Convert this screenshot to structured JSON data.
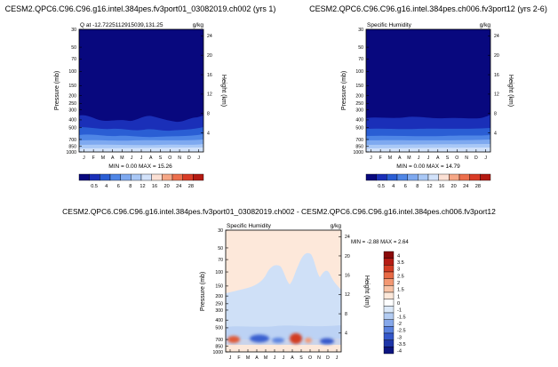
{
  "chart_data": [
    {
      "type": "heatmap",
      "title": "CESM2.QPC6.C96.C96.g16.intel.384pes.fv3port01_03082019.ch002 (yrs 1)",
      "subtitle_left": "Q at -12.7225112915039,131.25",
      "units": "g/kg",
      "ylabel": "Pressure (mb)",
      "ylabel_right": "Height (km)",
      "pressure_ticks": [
        "30",
        "50",
        "70",
        "100",
        "150",
        "200",
        "250",
        "300",
        "400",
        "500",
        "700",
        "850",
        "1000"
      ],
      "height_ticks": [
        "24",
        "20",
        "16",
        "12",
        "8",
        "4"
      ],
      "months": [
        "J",
        "F",
        "M",
        "A",
        "M",
        "J",
        "J",
        "A",
        "S",
        "O",
        "N",
        "D",
        "J"
      ],
      "stats": "MIN =  0.00 MAX =  15.26",
      "colorbar_labels": [
        "0.5",
        "4",
        "6",
        "8",
        "12",
        "16",
        "20",
        "24",
        "28"
      ]
    },
    {
      "type": "heatmap",
      "title": "CESM2.QPC6.C96.C96.g16.intel.384pes.ch006.fv3port12 (yrs 2-6)",
      "subtitle_left": "Specific Humidity",
      "units": "g/kg",
      "ylabel": "Pressure (mb)",
      "ylabel_right": "Height (km)",
      "pressure_ticks": [
        "30",
        "50",
        "70",
        "100",
        "150",
        "200",
        "250",
        "300",
        "400",
        "500",
        "700",
        "850",
        "1000"
      ],
      "height_ticks": [
        "24",
        "20",
        "16",
        "12",
        "8",
        "4"
      ],
      "months": [
        "J",
        "F",
        "M",
        "A",
        "M",
        "J",
        "J",
        "A",
        "S",
        "O",
        "N",
        "D",
        "J"
      ],
      "stats": "MIN =  0.00 MAX =  14.79",
      "colorbar_labels": [
        "0.5",
        "4",
        "6",
        "8",
        "12",
        "16",
        "20",
        "24",
        "28"
      ]
    },
    {
      "type": "heatmap",
      "title": "CESM2.QPC6.C96.C96.g16.intel.384pes.fv3port01_03082019.ch002 - CESM2.QPC6.C96.C96.g16.intel.384pes.ch006.fv3port12",
      "subtitle_left": "Specific Humidity",
      "units": "g/kg",
      "ylabel": "Pressure (mb)",
      "ylabel_right": "Height (km)",
      "pressure_ticks": [
        "30",
        "50",
        "70",
        "100",
        "150",
        "200",
        "250",
        "300",
        "400",
        "500",
        "700",
        "850",
        "1000"
      ],
      "height_ticks": [
        "24",
        "20",
        "16",
        "12",
        "8",
        "4"
      ],
      "months": [
        "J",
        "F",
        "M",
        "A",
        "M",
        "J",
        "J",
        "A",
        "S",
        "O",
        "N",
        "D",
        "J"
      ],
      "stats": "MIN = -2.88 MAX =  2.64",
      "colorbar_labels": [
        "4",
        "3.5",
        "3",
        "2.5",
        "2",
        "1.5",
        "1",
        "0",
        "-1",
        "-1.5",
        "-2",
        "-2.5",
        "-3",
        "-3.5",
        "-4"
      ]
    }
  ],
  "colors": {
    "seq_colorbar": [
      "#08087e",
      "#1a2fb8",
      "#2a5ed4",
      "#4f86e6",
      "#7ea9f0",
      "#a9c8f6",
      "#d2e2fa",
      "#fbe0d4",
      "#f6a786",
      "#ed6f4c",
      "#d93b26",
      "#b41a12"
    ],
    "div_colorbar": [
      "#8a0a0a",
      "#b51c14",
      "#d33c24",
      "#e86a45",
      "#f39873",
      "#f8c3a6",
      "#fde8da",
      "#ffffff",
      "#dbe8f8",
      "#b3ccf2",
      "#86a8ea",
      "#5a82df",
      "#3558cb",
      "#1e35a8",
      "#0c1580"
    ],
    "dark_blue": "#08087e",
    "diff_background": "#fde8da",
    "diff_light_blue": "#cfe0f7",
    "diff_blue": "#3a60d0",
    "diff_red": "#e05a38"
  }
}
